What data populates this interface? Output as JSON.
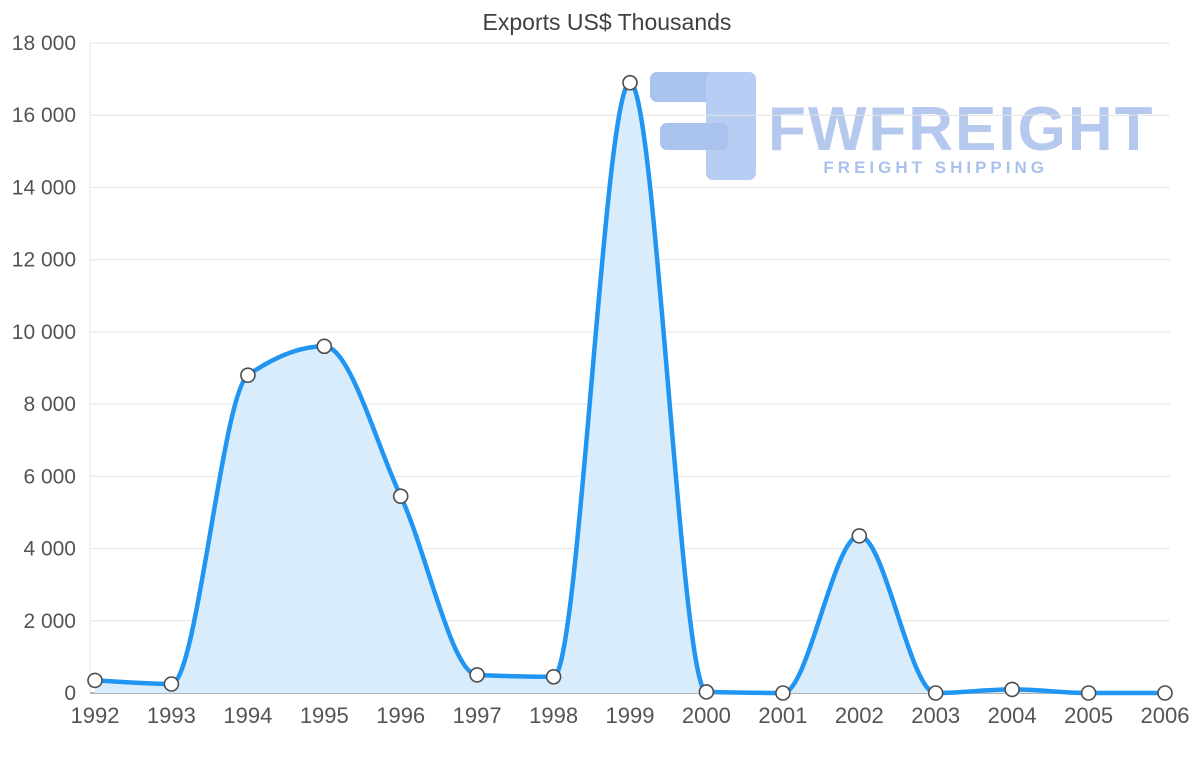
{
  "watermark": {
    "brand": "FWFREIGHT",
    "tagline": "FREIGHT SHIPPING",
    "brand_color": "#b5c8ee",
    "tagline_color": "#a9c2ec",
    "icon_color": "#a9c2ee",
    "icon_color_light": "#b7cdf3"
  },
  "chart_data": {
    "type": "area",
    "title": "Exports US$ Thousands",
    "x": [
      1992,
      1993,
      1994,
      1995,
      1996,
      1997,
      1998,
      1999,
      2000,
      2001,
      2002,
      2003,
      2004,
      2005,
      2006
    ],
    "values": [
      350,
      250,
      8800,
      9600,
      5450,
      500,
      450,
      16900,
      30,
      0,
      4350,
      0,
      100,
      0,
      0
    ],
    "xlabel": "",
    "ylabel": "",
    "ylim": [
      0,
      18000
    ],
    "yticks": [
      0,
      2000,
      4000,
      6000,
      8000,
      10000,
      12000,
      14000,
      16000,
      18000
    ],
    "grid": true,
    "legend": "none",
    "line_color": "#2095f2",
    "fill_color": "#d9ecfc",
    "marker_fill": "#ffffff",
    "marker_stroke": "#4d4d4d",
    "grid_color": "#e4e4e4",
    "axis_color": "#9b9b9b",
    "label_color": "#545454",
    "title_color": "#404040"
  }
}
